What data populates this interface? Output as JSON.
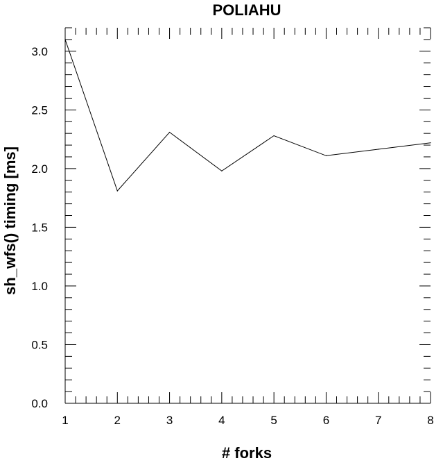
{
  "chart_data": {
    "type": "line",
    "title": "POLIAHU",
    "xlabel": "# forks",
    "ylabel": "sh_wfs() timing [ms]",
    "x": [
      1,
      2,
      3,
      4,
      5,
      6,
      7,
      8
    ],
    "series": [
      {
        "values": [
          3.1,
          1.81,
          2.31,
          1.98,
          2.28,
          2.11,
          2.165,
          2.22
        ]
      }
    ],
    "xlim": [
      1,
      8
    ],
    "ylim": [
      0.0,
      3.2
    ],
    "xticks": [
      "1",
      "2",
      "3",
      "4",
      "5",
      "6",
      "7",
      "8"
    ],
    "yticks": [
      "0.0",
      "0.5",
      "1.0",
      "1.5",
      "2.0",
      "2.5",
      "3.0"
    ],
    "grid": false,
    "legend": "none",
    "colors": {
      "line": "#000000",
      "axis": "#000000",
      "background": "#ffffff"
    }
  }
}
